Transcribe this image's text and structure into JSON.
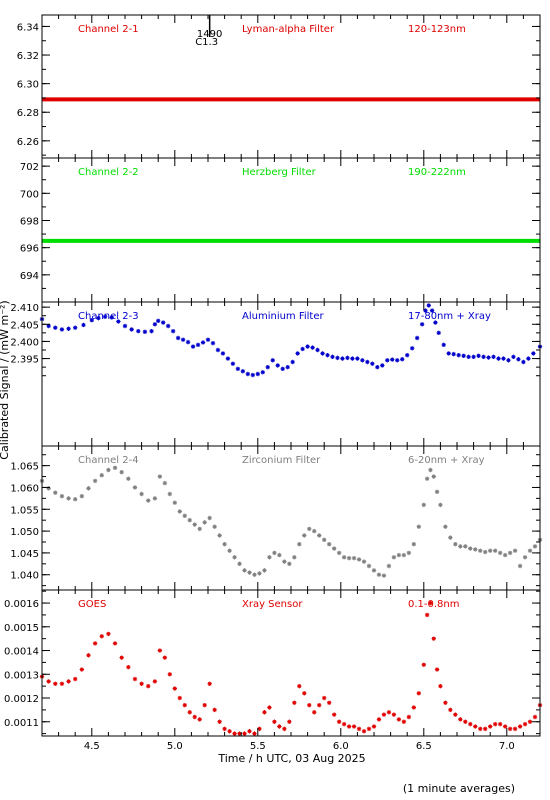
{
  "figure": {
    "xlabel": "Time / h UTC, 03 Aug 2025",
    "ylabel": "Calibrated Signal / (mW m⁻²)",
    "footnote": "(1 minute averages)",
    "x_tick_labels": [
      "4.5",
      "5.0",
      "5.5",
      "6.0",
      "6.5",
      "7.0"
    ],
    "flare_marker": {
      "time": "1490",
      "class": "C1.3",
      "x": 5.21
    }
  },
  "chart_data": [
    {
      "type": "scatter",
      "panel": "Channel 2-1",
      "labels": [
        "Channel 2-1",
        "Lyman-alpha Filter",
        "120-123nm"
      ],
      "color": "#e00000",
      "xlim": [
        4.2,
        7.2
      ],
      "ylim": [
        6.248,
        6.348
      ],
      "yticks": [
        6.26,
        6.28,
        6.3,
        6.32,
        6.34
      ],
      "ytick_labels": [
        "6.26",
        "6.28",
        "6.30",
        "6.32",
        "6.34"
      ],
      "series": [
        {
          "x": [
            4.2,
            7.2
          ],
          "y": [
            6.289,
            6.289
          ]
        }
      ]
    },
    {
      "type": "scatter",
      "panel": "Channel 2-2",
      "labels": [
        "Channel 2-2",
        "Herzberg Filter",
        "190-222nm"
      ],
      "color": "#00dd00",
      "xlim": [
        4.2,
        7.2
      ],
      "ylim": [
        692.0,
        702.6
      ],
      "yticks": [
        694,
        696,
        698,
        700,
        702
      ],
      "ytick_labels": [
        "694",
        "696",
        "698",
        "700",
        "702"
      ],
      "series": [
        {
          "x": [
            4.2,
            7.2
          ],
          "y": [
            696.5,
            696.5
          ]
        }
      ]
    },
    {
      "type": "scatter",
      "panel": "Channel 2-3",
      "labels": [
        "Channel 2-3",
        "Aluminium Filter",
        "17-80nm + Xray"
      ],
      "color": "#0000cc",
      "xlim": [
        4.2,
        7.2
      ],
      "ylim": [
        2.3695,
        2.4115
      ],
      "yticks": [
        2.395,
        2.4,
        2.405,
        2.41
      ],
      "ytick_labels": [
        "2.395",
        "2.400",
        "2.405",
        "2.410"
      ],
      "series": [
        {
          "x": [
            4.2,
            4.24,
            4.28,
            4.32,
            4.36,
            4.4,
            4.45,
            4.5,
            4.54,
            4.58,
            4.62,
            4.66,
            4.7,
            4.74,
            4.78,
            4.82,
            4.86,
            4.88,
            4.9,
            4.93,
            4.96,
            4.99,
            5.02,
            5.05,
            5.08,
            5.11,
            5.14,
            5.17,
            5.2,
            5.23,
            5.26,
            5.29,
            5.32,
            5.35,
            5.38,
            5.41,
            5.44,
            5.47,
            5.5,
            5.53,
            5.56,
            5.59,
            5.62,
            5.65,
            5.68,
            5.71,
            5.74,
            5.77,
            5.8,
            5.83,
            5.86,
            5.89,
            5.92,
            5.95,
            5.98,
            6.01,
            6.04,
            6.07,
            6.1,
            6.13,
            6.16,
            6.19,
            6.22,
            6.25,
            6.28,
            6.31,
            6.34,
            6.37,
            6.4,
            6.43,
            6.46,
            6.49,
            6.51,
            6.53,
            6.55,
            6.57,
            6.59,
            6.62,
            6.65,
            6.68,
            6.71,
            6.74,
            6.77,
            6.8,
            6.83,
            6.86,
            6.89,
            6.92,
            6.95,
            6.98,
            7.01,
            7.04,
            7.07,
            7.1,
            7.13,
            7.16,
            7.2
          ],
          "y": [
            2.4065,
            2.4045,
            2.404,
            2.4035,
            2.4037,
            2.404,
            2.4048,
            2.4062,
            2.4068,
            2.4072,
            2.407,
            2.4058,
            2.4045,
            2.4035,
            2.403,
            2.4028,
            2.403,
            2.405,
            2.406,
            2.4055,
            2.4045,
            2.403,
            2.401,
            2.4005,
            2.3998,
            2.3985,
            2.399,
            2.3997,
            2.4005,
            2.3995,
            2.3975,
            2.3965,
            2.395,
            2.3935,
            2.392,
            2.3913,
            2.3905,
            2.3902,
            2.3905,
            2.391,
            2.3925,
            2.3945,
            2.393,
            2.392,
            2.3925,
            2.394,
            2.3965,
            2.3978,
            2.3985,
            2.3982,
            2.3975,
            2.3965,
            2.396,
            2.3955,
            2.3952,
            2.395,
            2.3952,
            2.395,
            2.395,
            2.3945,
            2.394,
            2.3935,
            2.3925,
            2.393,
            2.3945,
            2.3947,
            2.3945,
            2.3948,
            2.396,
            2.398,
            2.401,
            2.405,
            2.409,
            2.4105,
            2.409,
            2.4055,
            2.4025,
            2.399,
            2.3965,
            2.3963,
            2.396,
            2.3958,
            2.3955,
            2.3955,
            2.3958,
            2.3955,
            2.3953,
            2.3955,
            2.395,
            2.395,
            2.3945,
            2.3955,
            2.3948,
            2.394,
            2.395,
            2.3965,
            2.3985
          ]
        }
      ]
    },
    {
      "type": "scatter",
      "panel": "Channel 2-4",
      "labels": [
        "Channel 2-4",
        "Zirconium Filter",
        "6-20nm + Xray"
      ],
      "color": "#808080",
      "xlim": [
        4.2,
        7.2
      ],
      "ylim": [
        1.0365,
        1.0695
      ],
      "yticks": [
        1.04,
        1.045,
        1.05,
        1.055,
        1.06,
        1.065
      ],
      "ytick_labels": [
        "1.040",
        "1.045",
        "1.050",
        "1.055",
        "1.060",
        "1.065"
      ],
      "series": [
        {
          "x": [
            4.2,
            4.24,
            4.28,
            4.32,
            4.36,
            4.4,
            4.44,
            4.48,
            4.52,
            4.56,
            4.6,
            4.64,
            4.68,
            4.72,
            4.76,
            4.8,
            4.84,
            4.88,
            4.91,
            4.94,
            4.97,
            5.0,
            5.03,
            5.06,
            5.09,
            5.12,
            5.15,
            5.18,
            5.21,
            5.24,
            5.27,
            5.3,
            5.33,
            5.36,
            5.39,
            5.42,
            5.45,
            5.48,
            5.51,
            5.54,
            5.57,
            5.6,
            5.63,
            5.66,
            5.69,
            5.72,
            5.75,
            5.78,
            5.81,
            5.84,
            5.87,
            5.9,
            5.93,
            5.96,
            5.99,
            6.02,
            6.05,
            6.08,
            6.11,
            6.14,
            6.17,
            6.2,
            6.23,
            6.26,
            6.29,
            6.32,
            6.35,
            6.38,
            6.41,
            6.44,
            6.47,
            6.5,
            6.52,
            6.54,
            6.56,
            6.58,
            6.6,
            6.63,
            6.66,
            6.69,
            6.72,
            6.75,
            6.78,
            6.81,
            6.84,
            6.87,
            6.9,
            6.93,
            6.96,
            6.99,
            7.02,
            7.05,
            7.08,
            7.11,
            7.14,
            7.17,
            7.2
          ],
          "y": [
            1.0615,
            1.0598,
            1.0588,
            1.058,
            1.0575,
            1.0573,
            1.058,
            1.0598,
            1.0615,
            1.0628,
            1.064,
            1.0645,
            1.0635,
            1.062,
            1.06,
            1.0585,
            1.057,
            1.0575,
            1.0625,
            1.061,
            1.0585,
            1.0565,
            1.0545,
            1.0535,
            1.0525,
            1.0515,
            1.0505,
            1.052,
            1.053,
            1.051,
            1.049,
            1.047,
            1.0455,
            1.044,
            1.0425,
            1.041,
            1.0405,
            1.04,
            1.0403,
            1.041,
            1.044,
            1.045,
            1.0445,
            1.043,
            1.0425,
            1.044,
            1.047,
            1.049,
            1.0505,
            1.05,
            1.049,
            1.048,
            1.047,
            1.046,
            1.045,
            1.044,
            1.0438,
            1.0438,
            1.0435,
            1.043,
            1.042,
            1.041,
            1.04,
            1.0398,
            1.042,
            1.044,
            1.0445,
            1.0445,
            1.045,
            1.047,
            1.051,
            1.056,
            1.062,
            1.064,
            1.0625,
            1.059,
            1.056,
            1.051,
            1.0485,
            1.047,
            1.0465,
            1.0465,
            1.046,
            1.0458,
            1.0455,
            1.0452,
            1.0455,
            1.0455,
            1.045,
            1.0445,
            1.045,
            1.0455,
            1.042,
            1.044,
            1.0455,
            1.0465,
            1.048
          ]
        }
      ]
    },
    {
      "type": "scatter",
      "panel": "GOES",
      "labels": [
        "GOES",
        "Xray Sensor",
        "0.1-0.8nm"
      ],
      "color": "#e00000",
      "xlim": [
        4.2,
        7.2
      ],
      "ylim": [
        0.00104,
        0.001655
      ],
      "yticks": [
        0.0011,
        0.0012,
        0.0013,
        0.0014,
        0.0015,
        0.0016
      ],
      "ytick_labels": [
        "0.0011",
        "0.0012",
        "0.0013",
        "0.0014",
        "0.0015",
        "0.0016"
      ],
      "series": [
        {
          "x": [
            4.2,
            4.24,
            4.28,
            4.32,
            4.36,
            4.4,
            4.44,
            4.48,
            4.52,
            4.56,
            4.6,
            4.64,
            4.68,
            4.72,
            4.76,
            4.8,
            4.84,
            4.88,
            4.91,
            4.94,
            4.97,
            5.0,
            5.03,
            5.06,
            5.09,
            5.12,
            5.15,
            5.18,
            5.21,
            5.24,
            5.27,
            5.3,
            5.33,
            5.36,
            5.39,
            5.42,
            5.45,
            5.48,
            5.51,
            5.54,
            5.57,
            5.6,
            5.63,
            5.66,
            5.69,
            5.72,
            5.75,
            5.78,
            5.81,
            5.84,
            5.87,
            5.9,
            5.93,
            5.96,
            5.99,
            6.02,
            6.05,
            6.08,
            6.11,
            6.14,
            6.17,
            6.2,
            6.23,
            6.26,
            6.29,
            6.32,
            6.35,
            6.38,
            6.41,
            6.44,
            6.47,
            6.5,
            6.52,
            6.54,
            6.56,
            6.58,
            6.6,
            6.63,
            6.66,
            6.69,
            6.72,
            6.75,
            6.78,
            6.81,
            6.84,
            6.87,
            6.9,
            6.93,
            6.96,
            6.99,
            7.02,
            7.05,
            7.08,
            7.11,
            7.14,
            7.17,
            7.2
          ],
          "y": [
            0.00129,
            0.00127,
            0.00126,
            0.00126,
            0.00127,
            0.00128,
            0.00132,
            0.00138,
            0.00143,
            0.00146,
            0.00147,
            0.00143,
            0.00137,
            0.00133,
            0.00128,
            0.00126,
            0.00125,
            0.00127,
            0.0014,
            0.00137,
            0.0013,
            0.00124,
            0.0012,
            0.00117,
            0.00114,
            0.00112,
            0.00111,
            0.00117,
            0.00126,
            0.00115,
            0.0011,
            0.00107,
            0.00106,
            0.00105,
            0.00105,
            0.00105,
            0.00106,
            0.00105,
            0.00107,
            0.00114,
            0.00116,
            0.0011,
            0.00108,
            0.00107,
            0.0011,
            0.00118,
            0.00125,
            0.00122,
            0.00117,
            0.00114,
            0.00117,
            0.0012,
            0.00118,
            0.00113,
            0.0011,
            0.00109,
            0.00108,
            0.00108,
            0.00107,
            0.00106,
            0.00107,
            0.00108,
            0.00111,
            0.00113,
            0.00114,
            0.00113,
            0.00111,
            0.0011,
            0.00112,
            0.00116,
            0.00122,
            0.00134,
            0.00155,
            0.0016,
            0.00145,
            0.00132,
            0.00125,
            0.00118,
            0.00115,
            0.00113,
            0.00111,
            0.0011,
            0.00109,
            0.00108,
            0.00107,
            0.00107,
            0.00108,
            0.00109,
            0.00109,
            0.00108,
            0.00107,
            0.00107,
            0.00108,
            0.00109,
            0.0011,
            0.00112,
            0.00117
          ]
        }
      ]
    }
  ]
}
